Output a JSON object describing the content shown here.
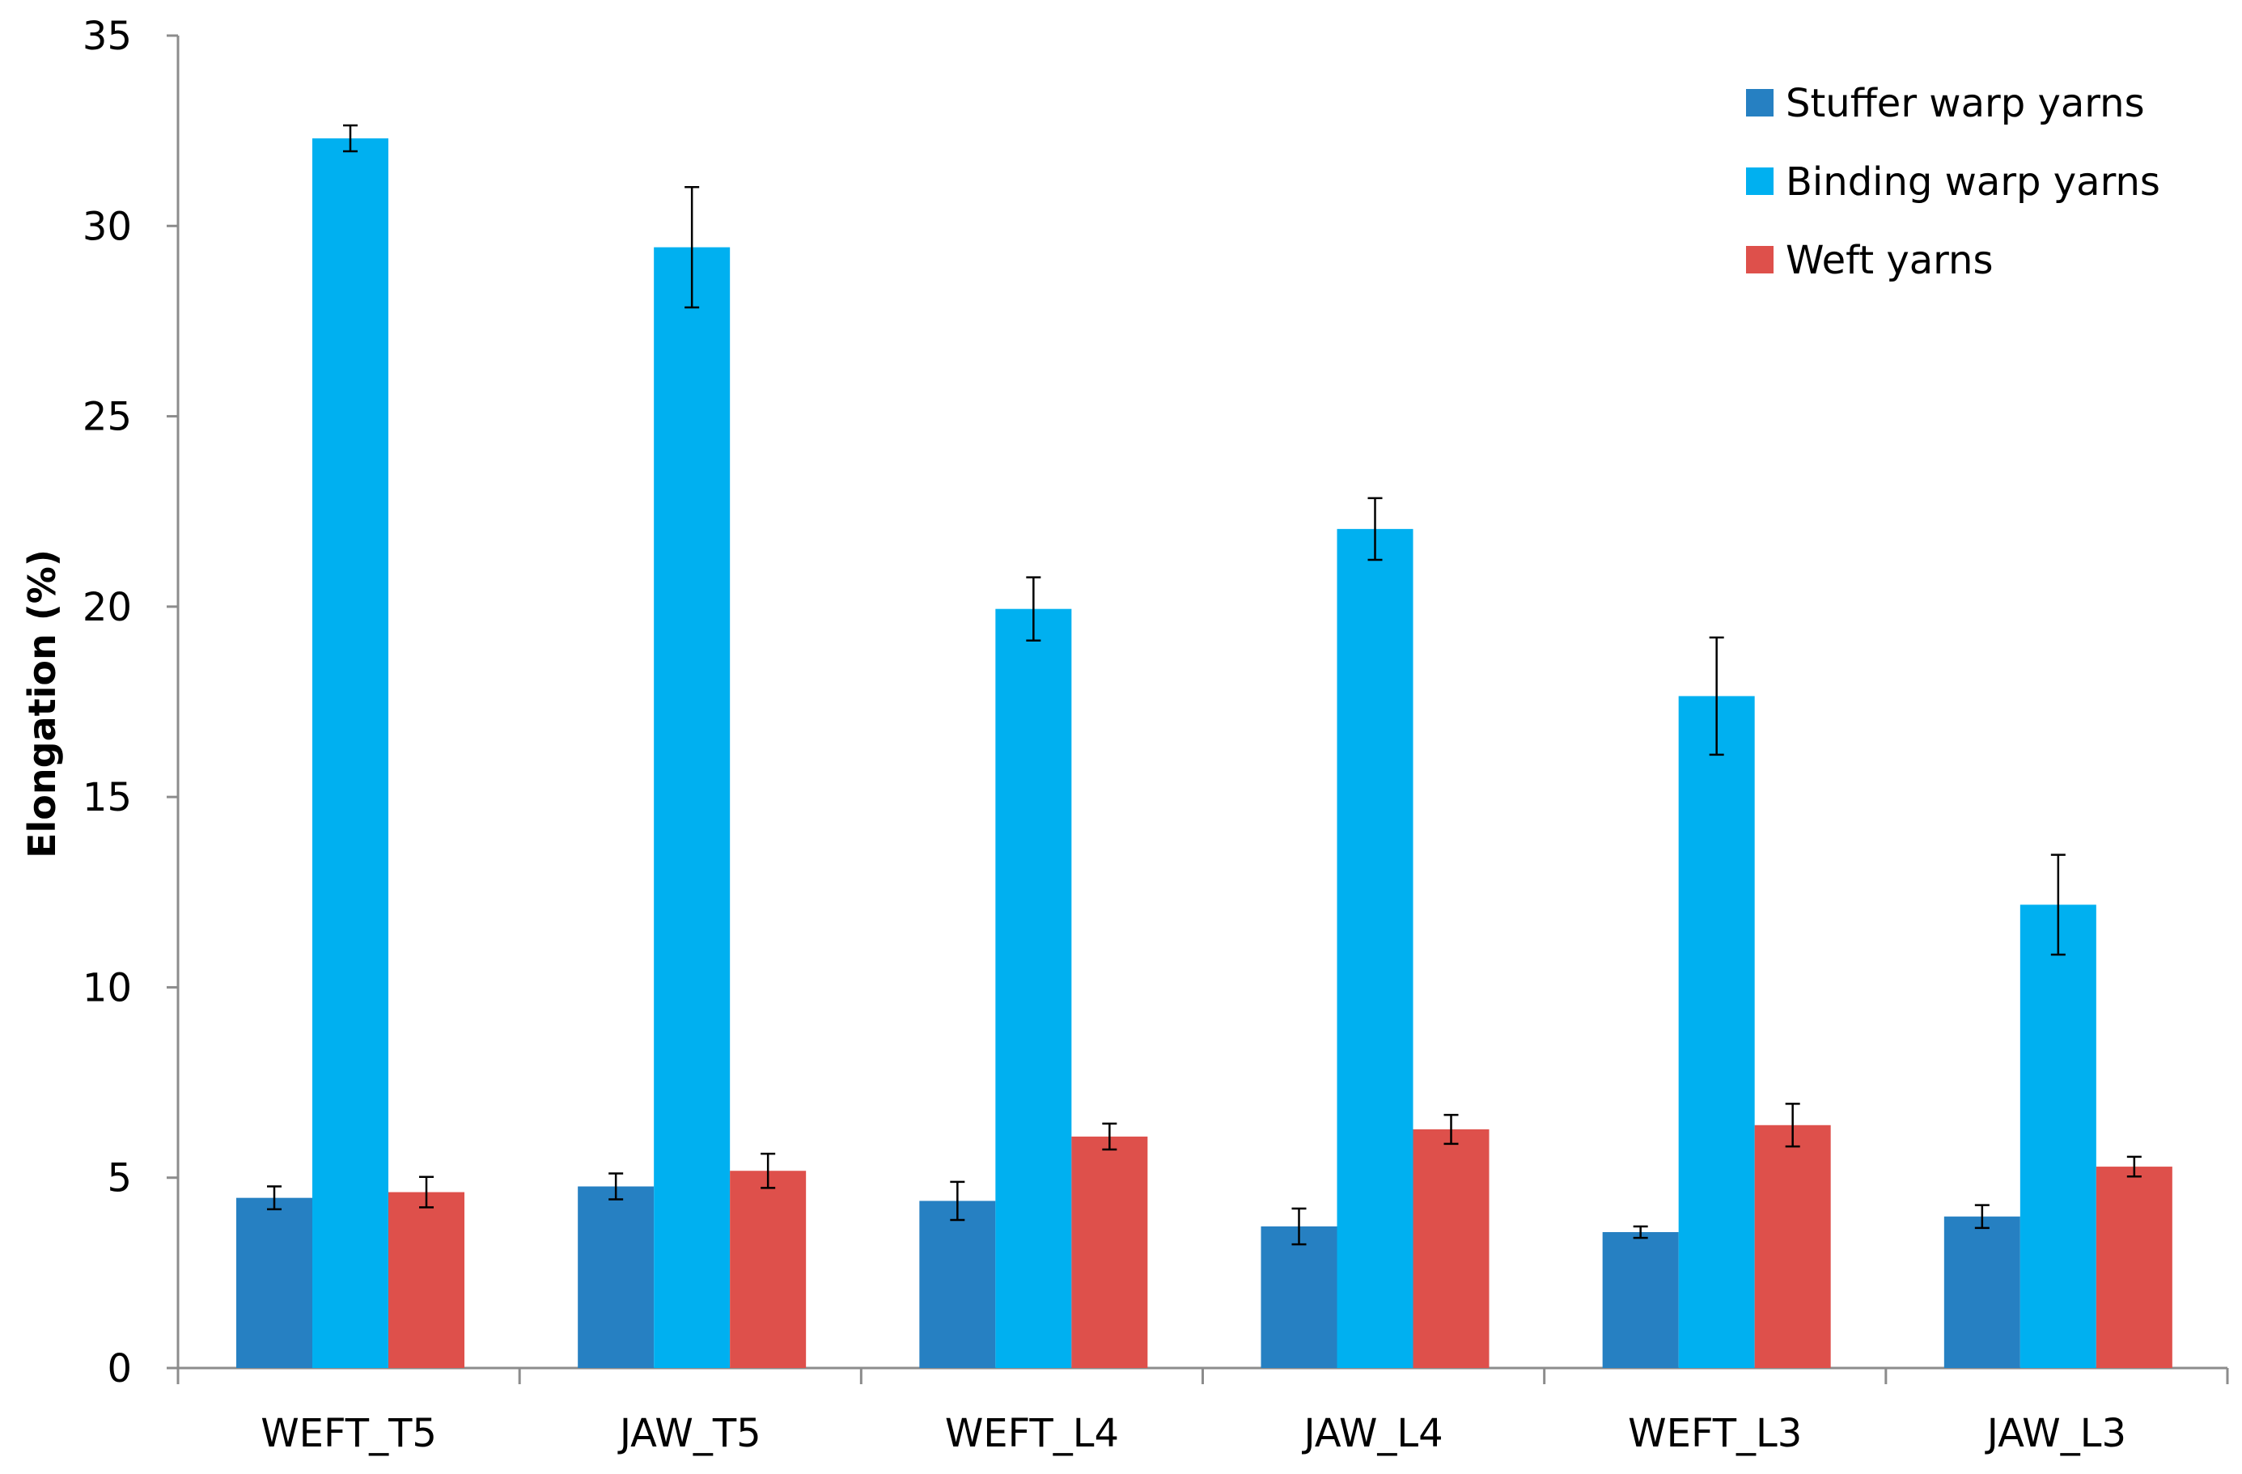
{
  "chart_data": {
    "type": "bar",
    "title": "",
    "xlabel": "",
    "ylabel": "Elongation (%)",
    "ylim": [
      0,
      35
    ],
    "yticks": [
      0,
      5,
      10,
      15,
      20,
      25,
      30,
      35
    ],
    "grid": false,
    "legend_position": "top-right",
    "categories": [
      "WEFT_T5",
      "JAW_T5",
      "WEFT_L4",
      "JAW_L4",
      "WEFT_L3",
      "JAW_L3"
    ],
    "series": [
      {
        "name": "Stuffer warp yarns",
        "color": "#2680c2",
        "values": [
          4.47,
          4.77,
          4.39,
          3.72,
          3.57,
          3.98
        ],
        "errors": [
          0.3,
          0.34,
          0.5,
          0.47,
          0.15,
          0.3
        ]
      },
      {
        "name": "Binding warp yarns",
        "color": "#00b0f0",
        "values": [
          32.3,
          29.44,
          19.94,
          22.04,
          17.65,
          12.17
        ],
        "errors": [
          0.34,
          1.58,
          0.83,
          0.81,
          1.54,
          1.31
        ]
      },
      {
        "name": "Weft yarns",
        "color": "#de504b",
        "values": [
          4.62,
          5.18,
          6.08,
          6.27,
          6.38,
          5.29
        ],
        "errors": [
          0.4,
          0.45,
          0.34,
          0.38,
          0.56,
          0.26
        ]
      }
    ]
  }
}
